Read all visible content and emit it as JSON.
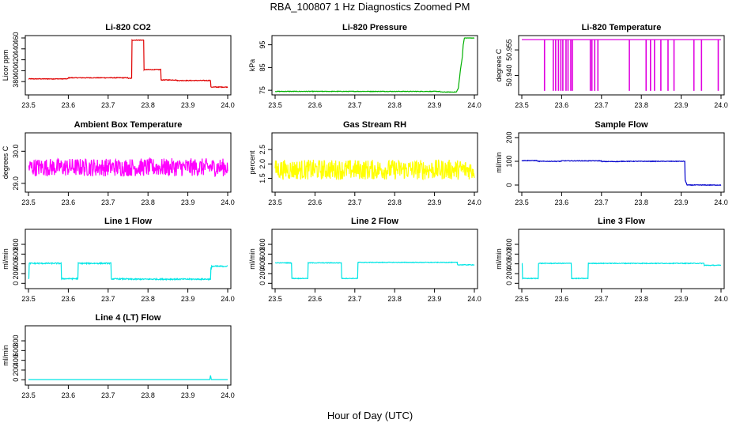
{
  "figure": {
    "title": "RBA_100807  1 Hz Diagnostics Zoomed PM",
    "xlabel": "Hour of Day (UTC)"
  },
  "chart_data": [
    {
      "type": "line",
      "title": "Li-820 CO2",
      "ylabel": "Licor ppm",
      "color": "#e00000",
      "xlim": [
        23.5,
        24.0
      ],
      "ylim": [
        360,
        460
      ],
      "xticks": [
        "23.5",
        "23.6",
        "23.7",
        "23.8",
        "23.9",
        "24.0"
      ],
      "yticks": [
        {
          "v": 380,
          "label": "380"
        },
        {
          "v": 400,
          "label": "400"
        },
        {
          "v": 420,
          "label": "420"
        },
        {
          "v": 440,
          "label": "440"
        },
        {
          "v": 460,
          "label": "460"
        }
      ],
      "noise": 0.6,
      "series": [
        {
          "x": [
            23.5,
            23.6,
            23.6,
            23.75,
            23.75,
            23.76,
            23.76,
            23.79,
            23.79,
            23.833,
            23.833,
            23.872,
            23.872,
            23.955,
            23.955,
            23.958,
            23.958,
            24.0
          ],
          "y": [
            385,
            385,
            387,
            387,
            386,
            386,
            456,
            456,
            402,
            402,
            383,
            383,
            382,
            382,
            383,
            380,
            370,
            370
          ]
        }
      ]
    },
    {
      "type": "line",
      "title": "Li-820 Pressure",
      "ylabel": "kPa",
      "color": "#00b000",
      "xlim": [
        23.5,
        24.0
      ],
      "ylim": [
        74,
        98
      ],
      "xticks": [
        "23.5",
        "23.6",
        "23.7",
        "23.8",
        "23.9",
        "24.0"
      ],
      "yticks": [
        {
          "v": 75,
          "label": "75"
        },
        {
          "v": 85,
          "label": "85"
        },
        {
          "v": 95,
          "label": "95"
        }
      ],
      "noise": 0.12,
      "series": [
        {
          "x": [
            23.5,
            23.915,
            23.915,
            23.955,
            23.96,
            23.965,
            23.97,
            23.972,
            23.975,
            24.0
          ],
          "y": [
            74.5,
            74.5,
            74.2,
            74.2,
            76,
            84,
            90,
            95,
            98,
            98
          ]
        }
      ]
    },
    {
      "type": "spikes",
      "title": "Li-820 Temperature",
      "ylabel": "degrees C",
      "color": "#e000e0",
      "xlim": [
        23.5,
        24.0
      ],
      "ylim": [
        50.93,
        50.962
      ],
      "xticks": [
        "23.5",
        "23.6",
        "23.7",
        "23.8",
        "23.9",
        "24.0"
      ],
      "yticks": [
        {
          "v": 50.94,
          "label": "50.940"
        },
        {
          "v": 50.955,
          "label": "50.955"
        }
      ],
      "base": 50.961,
      "low": 50.931,
      "spike_x": [
        23.557,
        23.579,
        23.585,
        23.592,
        23.598,
        23.603,
        23.611,
        23.616,
        23.623,
        23.627,
        23.672,
        23.676,
        23.683,
        23.691,
        23.77,
        23.812,
        23.823,
        23.833,
        23.849,
        23.867,
        23.882,
        23.932,
        23.951,
        23.993
      ]
    },
    {
      "type": "line",
      "title": "Ambient Box Temperature",
      "ylabel": "degrees C",
      "color": "#ff00ff",
      "xlim": [
        23.5,
        24.0
      ],
      "ylim": [
        28.8,
        30.5
      ],
      "xticks": [
        "23.5",
        "23.6",
        "23.7",
        "23.8",
        "23.9",
        "24.0"
      ],
      "yticks": [
        {
          "v": 29.0,
          "label": "29.0"
        },
        {
          "v": 30.0,
          "label": "30.0"
        }
      ],
      "noise": 0.28,
      "series": [
        {
          "x": [
            23.5,
            24.0
          ],
          "y": [
            29.5,
            29.5
          ]
        }
      ]
    },
    {
      "type": "line",
      "title": "Gas Stream RH",
      "ylabel": "percent",
      "color": "#ffff00",
      "xlim": [
        23.5,
        24.0
      ],
      "ylim": [
        1.1,
        3.0
      ],
      "xticks": [
        "23.5",
        "23.6",
        "23.7",
        "23.8",
        "23.9",
        "24.0"
      ],
      "yticks": [
        {
          "v": 1.5,
          "label": "1.5"
        },
        {
          "v": 2.0,
          "label": "2.0"
        },
        {
          "v": 2.5,
          "label": "2.5"
        }
      ],
      "noise": 0.35,
      "series": [
        {
          "x": [
            23.5,
            24.0
          ],
          "y": [
            1.8,
            1.8
          ]
        }
      ]
    },
    {
      "type": "line",
      "title": "Sample Flow",
      "ylabel": "ml/min",
      "color": "#0000cc",
      "xlim": [
        23.5,
        24.0
      ],
      "ylim": [
        -20,
        210
      ],
      "xticks": [
        "23.5",
        "23.6",
        "23.7",
        "23.8",
        "23.9",
        "24.0"
      ],
      "yticks": [
        {
          "v": 0,
          "label": "0"
        },
        {
          "v": 100,
          "label": "100"
        },
        {
          "v": 200,
          "label": "200"
        }
      ],
      "noise": 1.2,
      "series": [
        {
          "x": [
            23.5,
            23.54,
            23.54,
            23.6,
            23.6,
            23.7,
            23.7,
            23.75,
            23.75,
            23.91,
            23.91,
            23.915,
            23.915,
            24.0
          ],
          "y": [
            103,
            103,
            100,
            100,
            102,
            102,
            99,
            99,
            100,
            100,
            20,
            0,
            0,
            0
          ]
        }
      ]
    },
    {
      "type": "line",
      "title": "Line 1 Flow",
      "ylabel": "ml/min",
      "color": "#00e5e5",
      "xlim": [
        23.5,
        24.0
      ],
      "ylim": [
        -60,
        1060
      ],
      "xticks": [
        "23.5",
        "23.6",
        "23.7",
        "23.8",
        "23.9",
        "24.0"
      ],
      "yticks": [
        {
          "v": 0,
          "label": "0"
        },
        {
          "v": 200,
          "label": "200"
        },
        {
          "v": 400,
          "label": "400"
        },
        {
          "v": 600,
          "label": "600"
        },
        {
          "v": 800,
          "label": "800"
        }
      ],
      "noise": 12,
      "series": [
        {
          "x": [
            23.5,
            23.502,
            23.502,
            23.583,
            23.583,
            23.625,
            23.625,
            23.708,
            23.708,
            23.75,
            23.75,
            23.958,
            23.958,
            23.96,
            23.96,
            24.0
          ],
          "y": [
            100,
            100,
            410,
            410,
            95,
            95,
            410,
            410,
            90,
            90,
            85,
            85,
            300,
            300,
            350,
            350
          ]
        }
      ]
    },
    {
      "type": "line",
      "title": "Line 2 Flow",
      "ylabel": "ml/min",
      "color": "#00e5e5",
      "xlim": [
        23.5,
        24.0
      ],
      "ylim": [
        -60,
        1060
      ],
      "xticks": [
        "23.5",
        "23.6",
        "23.7",
        "23.8",
        "23.9",
        "24.0"
      ],
      "yticks": [
        {
          "v": 0,
          "label": "0"
        },
        {
          "v": 200,
          "label": "200"
        },
        {
          "v": 400,
          "label": "400"
        },
        {
          "v": 600,
          "label": "600"
        },
        {
          "v": 800,
          "label": "800"
        }
      ],
      "noise": 6,
      "series": [
        {
          "x": [
            23.5,
            23.542,
            23.542,
            23.583,
            23.583,
            23.667,
            23.667,
            23.708,
            23.708,
            23.958,
            23.958,
            24.0
          ],
          "y": [
            420,
            420,
            100,
            100,
            420,
            420,
            100,
            100,
            430,
            430,
            380,
            380
          ]
        }
      ]
    },
    {
      "type": "line",
      "title": "Line 3 Flow",
      "ylabel": "ml/min",
      "color": "#00e5e5",
      "xlim": [
        23.5,
        24.0
      ],
      "ylim": [
        -60,
        1060
      ],
      "xticks": [
        "23.5",
        "23.6",
        "23.7",
        "23.8",
        "23.9",
        "24.0"
      ],
      "yticks": [
        {
          "v": 0,
          "label": "0"
        },
        {
          "v": 200,
          "label": "200"
        },
        {
          "v": 400,
          "label": "400"
        },
        {
          "v": 600,
          "label": "600"
        },
        {
          "v": 800,
          "label": "800"
        }
      ],
      "noise": 7,
      "series": [
        {
          "x": [
            23.5,
            23.502,
            23.502,
            23.542,
            23.542,
            23.625,
            23.625,
            23.667,
            23.667,
            23.958,
            23.958,
            24.0
          ],
          "y": [
            410,
            410,
            100,
            100,
            410,
            410,
            100,
            100,
            410,
            410,
            370,
            370
          ]
        }
      ]
    },
    {
      "type": "line",
      "title": "Line 4 (LT) Flow",
      "ylabel": "ml/min",
      "color": "#00e5e5",
      "xlim": [
        23.5,
        24.0
      ],
      "ylim": [
        -60,
        1060
      ],
      "xticks": [
        "23.5",
        "23.6",
        "23.7",
        "23.8",
        "23.9",
        "24.0"
      ],
      "yticks": [
        {
          "v": 0,
          "label": "0"
        },
        {
          "v": 200,
          "label": "200"
        },
        {
          "v": 400,
          "label": "400"
        },
        {
          "v": 600,
          "label": "600"
        },
        {
          "v": 800,
          "label": "800"
        }
      ],
      "noise": 0,
      "series": [
        {
          "x": [
            23.5,
            23.955,
            23.957,
            23.959,
            23.961,
            24.0
          ],
          "y": [
            5,
            5,
            90,
            5,
            5,
            5
          ]
        }
      ]
    }
  ]
}
